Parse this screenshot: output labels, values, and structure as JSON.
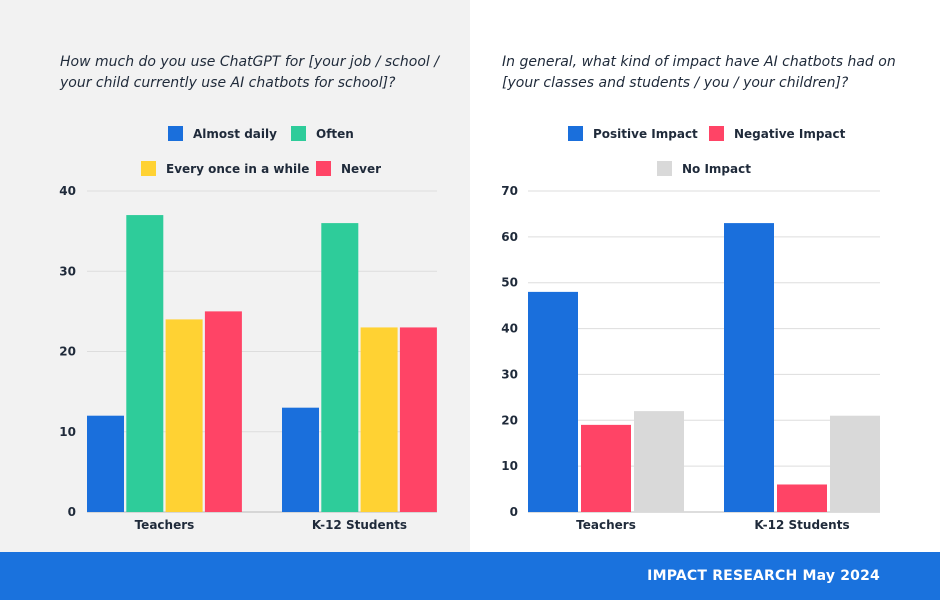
{
  "footer": {
    "text": "IMPACT RESEARCH May 2024"
  },
  "colors": {
    "blue": "#1a6fdc",
    "green": "#2ecc9a",
    "yellow": "#ffd233",
    "red": "#ff4466",
    "gray": "#d9d9d9",
    "grid": "#dddddd",
    "panel": "#f2f2f2"
  },
  "chart_data": [
    {
      "type": "bar",
      "title": "How much do you use ChatGPT for [your job / school / your child currently use AI chatbots for school]?",
      "categories": [
        "Teachers",
        "K-12 Students"
      ],
      "series": [
        {
          "name": "Almost daily",
          "color": "#1a6fdc",
          "values": [
            12,
            13
          ]
        },
        {
          "name": "Often",
          "color": "#2ecc9a",
          "values": [
            37,
            36
          ]
        },
        {
          "name": "Every once in a while",
          "color": "#ffd233",
          "values": [
            24,
            23
          ]
        },
        {
          "name": "Never",
          "color": "#ff4466",
          "values": [
            25,
            23
          ]
        }
      ],
      "yticks": [
        0,
        10,
        20,
        30,
        40
      ],
      "ylim": [
        0,
        40
      ],
      "xlabel": "",
      "ylabel": "",
      "grid": true,
      "legend": "top"
    },
    {
      "type": "bar",
      "title": "In general, what kind of impact have AI chatbots had on [your classes and students / you / your children]?",
      "categories": [
        "Teachers",
        "K-12 Students"
      ],
      "series": [
        {
          "name": "Positive Impact",
          "color": "#1a6fdc",
          "values": [
            48,
            63
          ]
        },
        {
          "name": "Negative Impact",
          "color": "#ff4466",
          "values": [
            19,
            6
          ]
        },
        {
          "name": "No Impact",
          "color": "#d9d9d9",
          "values": [
            22,
            21
          ]
        }
      ],
      "yticks": [
        0,
        10,
        20,
        30,
        40,
        50,
        60,
        70
      ],
      "ylim": [
        0,
        70
      ],
      "xlabel": "",
      "ylabel": "",
      "grid": true,
      "legend": "top"
    }
  ]
}
